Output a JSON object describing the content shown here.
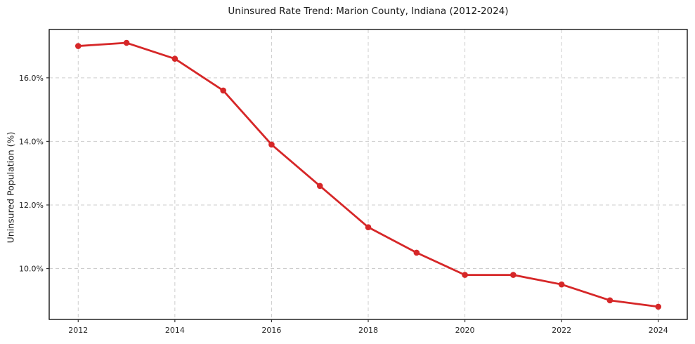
{
  "chart_data": {
    "type": "line",
    "title": "Uninsured Rate Trend: Marion County, Indiana (2012-2024)",
    "xlabel": "",
    "ylabel": "Uninsured Population (%)",
    "x": [
      2012,
      2013,
      2014,
      2015,
      2016,
      2017,
      2018,
      2019,
      2020,
      2021,
      2022,
      2023,
      2024
    ],
    "values": [
      17.0,
      17.1,
      16.6,
      15.6,
      13.9,
      12.6,
      11.3,
      10.5,
      9.8,
      9.8,
      9.5,
      9.0,
      8.8
    ],
    "xticks": [
      2012,
      2014,
      2016,
      2018,
      2020,
      2022,
      2024
    ],
    "xtick_labels": [
      "2012",
      "2014",
      "2016",
      "2018",
      "2020",
      "2022",
      "2024"
    ],
    "yticks": [
      10.0,
      12.0,
      14.0,
      16.0
    ],
    "ytick_labels": [
      "10.0%",
      "12.0%",
      "14.0%",
      "16.0%"
    ],
    "xlim": [
      2011.4,
      2024.6
    ],
    "ylim": [
      8.4,
      17.52
    ],
    "grid": true,
    "legend_position": "none",
    "line_color": "#d62728",
    "grid_color": "#cdcdcd",
    "spine_color": "#000000",
    "background_color": "#ffffff"
  }
}
